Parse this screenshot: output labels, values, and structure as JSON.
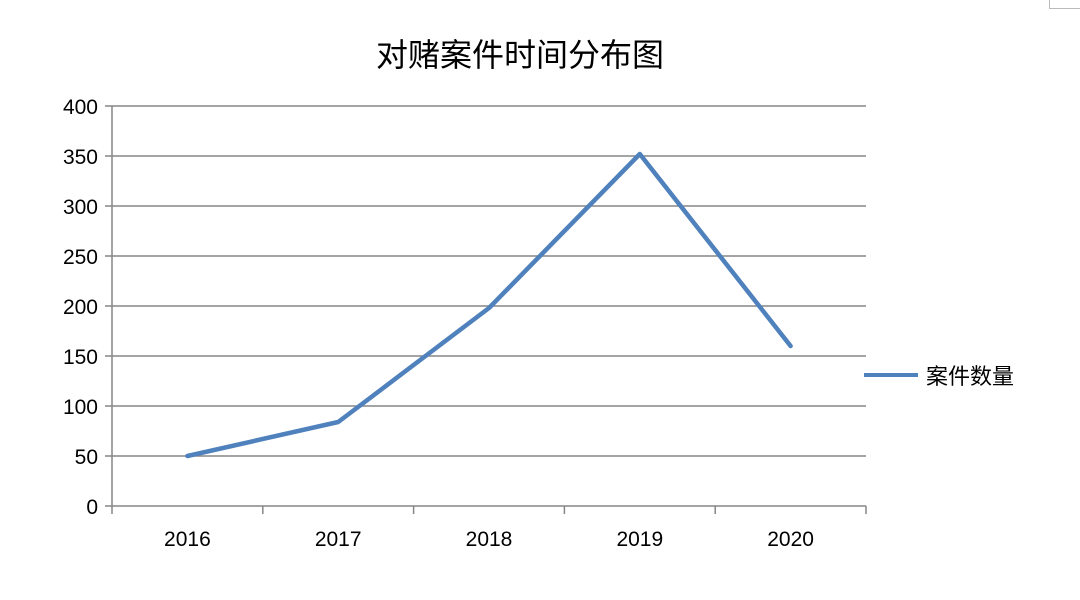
{
  "chart_data": {
    "type": "line",
    "title": "对赌案件时间分布图",
    "categories": [
      "2016",
      "2017",
      "2018",
      "2019",
      "2020"
    ],
    "series": [
      {
        "name": "案件数量",
        "values": [
          50,
          84,
          198,
          352,
          160
        ],
        "color": "#4f81bd"
      }
    ],
    "ylim": [
      0,
      400
    ],
    "yticks": [
      "0",
      "50",
      "100",
      "150",
      "200",
      "250",
      "300",
      "350",
      "400"
    ],
    "grid": true,
    "legend_position": "right"
  }
}
